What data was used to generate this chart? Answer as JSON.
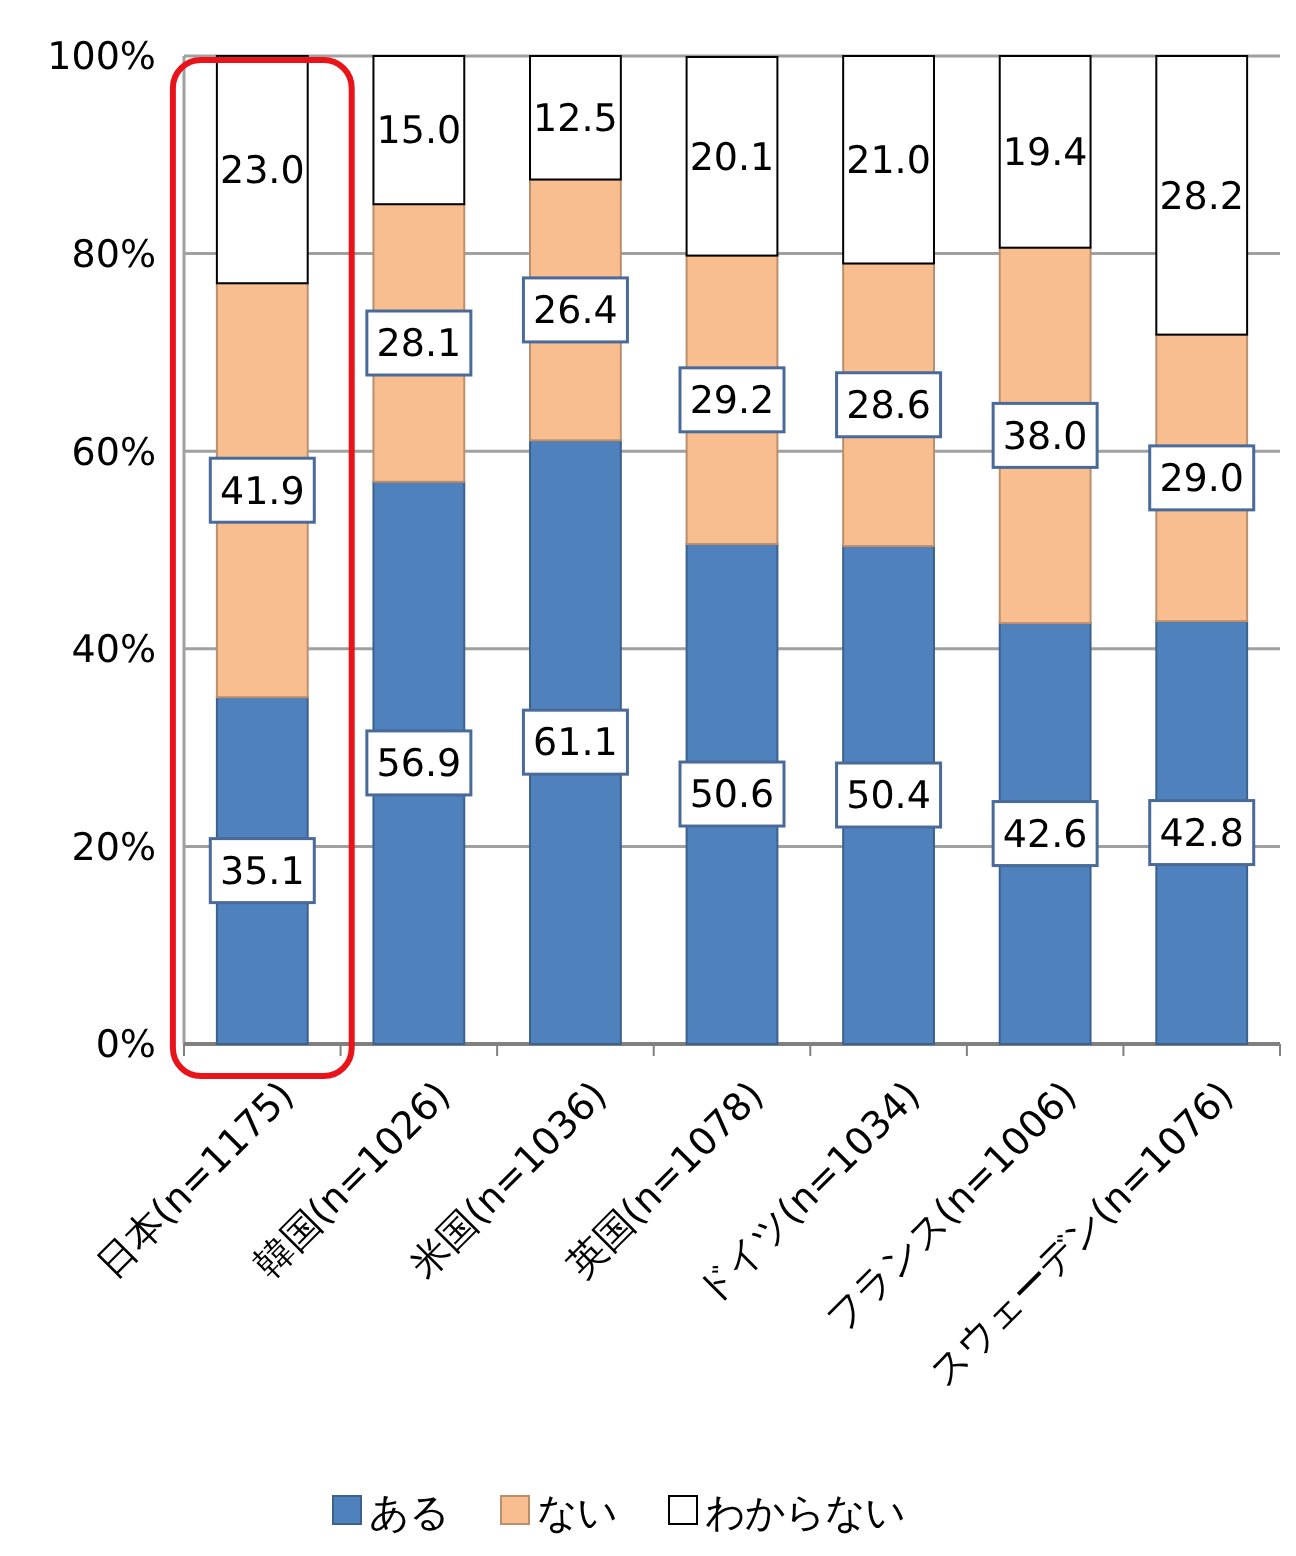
{
  "chart_data": {
    "type": "bar",
    "stacked": true,
    "categories": [
      "日本(n=1175)",
      "韓国(n=1026)",
      "米国(n=1036)",
      "英国(n=1078)",
      "ドイツ(n=1034)",
      "フランス(n=1006)",
      "スウェーデン(n=1076)"
    ],
    "series": [
      {
        "name": "ある",
        "color": "#4f81bd",
        "values": [
          35.1,
          56.9,
          61.1,
          50.6,
          50.4,
          42.6,
          42.8
        ],
        "value_labels": [
          "35.1",
          "56.9",
          "61.1",
          "50.6",
          "50.4",
          "42.6",
          "42.8"
        ]
      },
      {
        "name": "ない",
        "color": "#f9be8f",
        "values": [
          41.9,
          28.1,
          26.4,
          29.2,
          28.6,
          38.0,
          29.0
        ],
        "value_labels": [
          "41.9",
          "28.1",
          "26.4",
          "29.2",
          "28.6",
          "38.0",
          "29.0"
        ]
      },
      {
        "name": "わからない",
        "color": "#ffffff",
        "values": [
          23.0,
          15.0,
          12.5,
          20.1,
          21.0,
          19.4,
          28.2
        ],
        "value_labels": [
          "23.0",
          "15.0",
          "12.5",
          "20.1",
          "21.0",
          "19.4",
          "28.2"
        ]
      }
    ],
    "ylim": [
      0,
      100
    ],
    "yticks": [
      {
        "value": 0,
        "label": "0%"
      },
      {
        "value": 20,
        "label": "20%"
      },
      {
        "value": 40,
        "label": "40%"
      },
      {
        "value": 60,
        "label": "60%"
      },
      {
        "value": 80,
        "label": "80%"
      },
      {
        "value": 100,
        "label": "100%"
      }
    ],
    "grid": "y",
    "legend": "bottom"
  }
}
